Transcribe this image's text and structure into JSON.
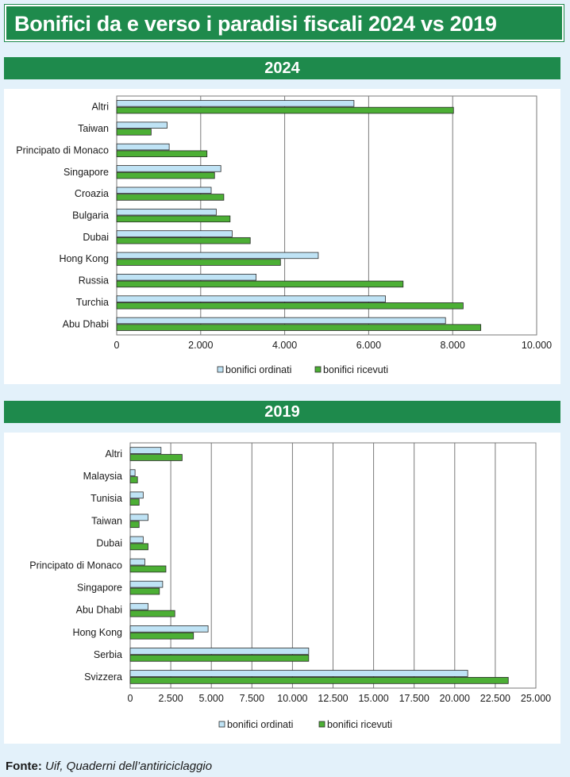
{
  "title": "Bonifici da e verso i paradisi fiscali 2024 vs 2019",
  "colors": {
    "header_green": "#1e8a4c",
    "ordinati": "#bfe3f5",
    "ricevuti": "#4caf35",
    "background": "#e3f1fa"
  },
  "source": {
    "label": "Fonte:",
    "text": "Uif, Quaderni dell’antiriciclaggio"
  },
  "chart_data": [
    {
      "type": "bar",
      "orientation": "horizontal",
      "title": "2024",
      "categories": [
        "Altri",
        "Taiwan",
        "Principato di Monaco",
        "Singapore",
        "Croazia",
        "Bulgaria",
        "Dubai",
        "Hong Kong",
        "Russia",
        "Turchia",
        "Abu Dhabi"
      ],
      "series": [
        {
          "name": "bonifici ordinati",
          "values": [
            5650,
            1200,
            1250,
            2480,
            2250,
            2370,
            2750,
            4800,
            3320,
            6400,
            7830
          ]
        },
        {
          "name": "bonifici ricevuti",
          "values": [
            8020,
            820,
            2150,
            2330,
            2550,
            2700,
            3180,
            3900,
            6820,
            8250,
            8670
          ]
        }
      ],
      "xlim": [
        0,
        10000
      ],
      "xticks": [
        "0",
        "2.000",
        "4.000",
        "6.000",
        "8.000",
        "10.000"
      ],
      "grid": true,
      "legend_position": "bottom"
    },
    {
      "type": "bar",
      "orientation": "horizontal",
      "title": "2019",
      "categories": [
        "Altri",
        "Malaysia",
        "Tunisia",
        "Taiwan",
        "Dubai",
        "Principato di Monaco",
        "Singapore",
        "Abu Dhabi",
        "Hong Kong",
        "Serbia",
        "Svizzera"
      ],
      "series": [
        {
          "name": "bonifici ordinati",
          "values": [
            1900,
            300,
            800,
            1100,
            800,
            900,
            2000,
            1100,
            4800,
            11000,
            20800
          ]
        },
        {
          "name": "bonifici ricevuti",
          "values": [
            3200,
            450,
            550,
            550,
            1100,
            2200,
            1800,
            2750,
            3900,
            11000,
            23300
          ]
        }
      ],
      "xlim": [
        0,
        25000
      ],
      "xticks": [
        "0",
        "2.500",
        "5.000",
        "7.500",
        "10.000",
        "12.500",
        "15.000",
        "17.500",
        "20.000",
        "22.500",
        "25.000"
      ],
      "grid": true,
      "legend_position": "bottom"
    }
  ]
}
